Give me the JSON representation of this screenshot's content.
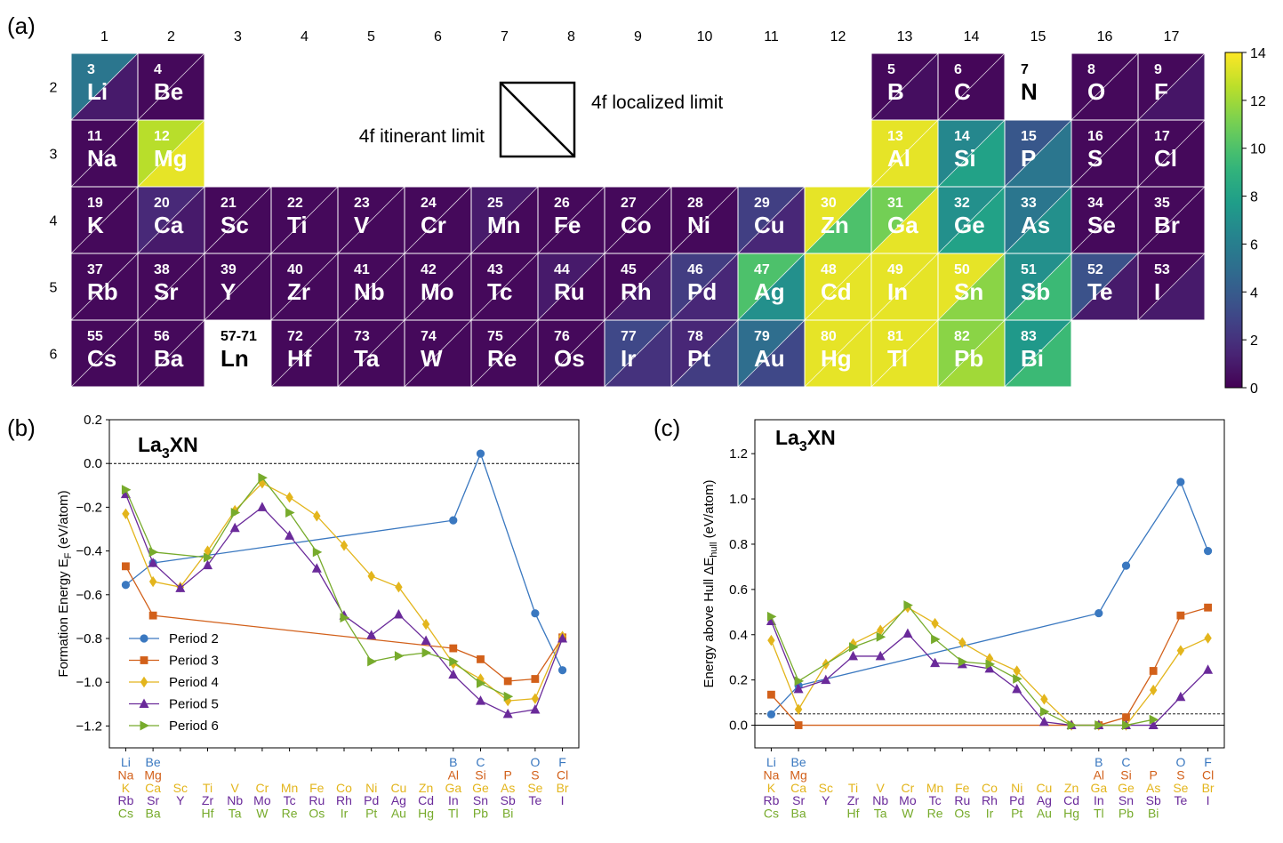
{
  "panel_labels": {
    "a": "(a)",
    "b": "(b)",
    "c": "(c)"
  },
  "colors": {
    "p2": "#3a78c0",
    "p3": "#d2601a",
    "p4": "#e3b51c",
    "p5": "#6a2a9a",
    "p6": "#77ab2c",
    "white_tile": "#ffffff",
    "grid": "#ffffff"
  },
  "periodic_table": {
    "groups": [
      "1",
      "2",
      "3",
      "4",
      "5",
      "6",
      "7",
      "8",
      "9",
      "10",
      "11",
      "12",
      "13",
      "14",
      "15",
      "16",
      "17"
    ],
    "periods": [
      "2",
      "3",
      "4",
      "5",
      "6"
    ],
    "legend": {
      "left": "4f itinerant limit",
      "right": "4f localized limit"
    },
    "colorbar": {
      "min": 0,
      "max": 14,
      "ticks": [
        "0",
        "2",
        "4",
        "6",
        "8",
        "10",
        "12",
        "14"
      ]
    },
    "elements": [
      {
        "num": "3",
        "sym": "Li",
        "period": 2,
        "group": 1,
        "tl": 5.5,
        "br": 1.0
      },
      {
        "num": "4",
        "sym": "Be",
        "period": 2,
        "group": 2,
        "tl": 0.3,
        "br": 0.3
      },
      {
        "num": "5",
        "sym": "B",
        "period": 2,
        "group": 13,
        "tl": 0.3,
        "br": 0.5
      },
      {
        "num": "6",
        "sym": "C",
        "period": 2,
        "group": 14,
        "tl": 0.2,
        "br": 0.3
      },
      {
        "num": "7",
        "sym": "N",
        "period": 2,
        "group": 15,
        "tl": null,
        "br": null
      },
      {
        "num": "8",
        "sym": "O",
        "period": 2,
        "group": 16,
        "tl": 0.3,
        "br": 0.3
      },
      {
        "num": "9",
        "sym": "F",
        "period": 2,
        "group": 17,
        "tl": 0.3,
        "br": 0.8
      },
      {
        "num": "11",
        "sym": "Na",
        "period": 3,
        "group": 1,
        "tl": 0.3,
        "br": 0.3
      },
      {
        "num": "12",
        "sym": "Mg",
        "period": 3,
        "group": 2,
        "tl": 12.5,
        "br": 13.5
      },
      {
        "num": "13",
        "sym": "Al",
        "period": 3,
        "group": 13,
        "tl": 13.5,
        "br": 13.5
      },
      {
        "num": "14",
        "sym": "Si",
        "period": 3,
        "group": 14,
        "tl": 6.5,
        "br": 8.0
      },
      {
        "num": "15",
        "sym": "P",
        "period": 3,
        "group": 15,
        "tl": 3.8,
        "br": 5.5
      },
      {
        "num": "16",
        "sym": "S",
        "period": 3,
        "group": 16,
        "tl": 0.3,
        "br": 0.3
      },
      {
        "num": "17",
        "sym": "Cl",
        "period": 3,
        "group": 17,
        "tl": 0.3,
        "br": 0.3
      },
      {
        "num": "19",
        "sym": "K",
        "period": 4,
        "group": 1,
        "tl": 0.3,
        "br": 0.3
      },
      {
        "num": "20",
        "sym": "Ca",
        "period": 4,
        "group": 2,
        "tl": 1.6,
        "br": 1.0
      },
      {
        "num": "21",
        "sym": "Sc",
        "period": 4,
        "group": 3,
        "tl": 0.3,
        "br": 0.3
      },
      {
        "num": "22",
        "sym": "Ti",
        "period": 4,
        "group": 4,
        "tl": 0.3,
        "br": 0.3
      },
      {
        "num": "23",
        "sym": "V",
        "period": 4,
        "group": 5,
        "tl": 0.3,
        "br": 0.3
      },
      {
        "num": "24",
        "sym": "Cr",
        "period": 4,
        "group": 6,
        "tl": 0.3,
        "br": 0.3
      },
      {
        "num": "25",
        "sym": "Mn",
        "period": 4,
        "group": 7,
        "tl": 1.0,
        "br": 0.3
      },
      {
        "num": "26",
        "sym": "Fe",
        "period": 4,
        "group": 8,
        "tl": 0.3,
        "br": 0.3
      },
      {
        "num": "27",
        "sym": "Co",
        "period": 4,
        "group": 9,
        "tl": 0.3,
        "br": 0.3
      },
      {
        "num": "28",
        "sym": "Ni",
        "period": 4,
        "group": 10,
        "tl": 0.3,
        "br": 0.3
      },
      {
        "num": "29",
        "sym": "Cu",
        "period": 4,
        "group": 11,
        "tl": 2.6,
        "br": 1.5
      },
      {
        "num": "30",
        "sym": "Zn",
        "period": 4,
        "group": 12,
        "tl": 13.5,
        "br": 10.0
      },
      {
        "num": "31",
        "sym": "Ga",
        "period": 4,
        "group": 13,
        "tl": 11.0,
        "br": 13.5
      },
      {
        "num": "32",
        "sym": "Ge",
        "period": 4,
        "group": 14,
        "tl": 7.0,
        "br": 8.0
      },
      {
        "num": "33",
        "sym": "As",
        "period": 4,
        "group": 15,
        "tl": 5.5,
        "br": 7.0
      },
      {
        "num": "34",
        "sym": "Se",
        "period": 4,
        "group": 16,
        "tl": 0.3,
        "br": 0.3
      },
      {
        "num": "35",
        "sym": "Br",
        "period": 4,
        "group": 17,
        "tl": 0.3,
        "br": 0.3
      },
      {
        "num": "37",
        "sym": "Rb",
        "period": 5,
        "group": 1,
        "tl": 0.3,
        "br": 0.3
      },
      {
        "num": "38",
        "sym": "Sr",
        "period": 5,
        "group": 2,
        "tl": 0.3,
        "br": 0.3
      },
      {
        "num": "39",
        "sym": "Y",
        "period": 5,
        "group": 3,
        "tl": 0.3,
        "br": 0.3
      },
      {
        "num": "40",
        "sym": "Zr",
        "period": 5,
        "group": 4,
        "tl": 0.3,
        "br": 0.3
      },
      {
        "num": "41",
        "sym": "Nb",
        "period": 5,
        "group": 5,
        "tl": 0.3,
        "br": 0.3
      },
      {
        "num": "42",
        "sym": "Mo",
        "period": 5,
        "group": 6,
        "tl": 0.3,
        "br": 0.3
      },
      {
        "num": "43",
        "sym": "Tc",
        "period": 5,
        "group": 7,
        "tl": 0.3,
        "br": 0.3
      },
      {
        "num": "44",
        "sym": "Ru",
        "period": 5,
        "group": 8,
        "tl": 1.0,
        "br": 0.3
      },
      {
        "num": "45",
        "sym": "Rh",
        "period": 5,
        "group": 9,
        "tl": 0.3,
        "br": 1.0
      },
      {
        "num": "46",
        "sym": "Pd",
        "period": 5,
        "group": 10,
        "tl": 2.5,
        "br": 1.5
      },
      {
        "num": "47",
        "sym": "Ag",
        "period": 5,
        "group": 11,
        "tl": 10.0,
        "br": 7.0
      },
      {
        "num": "48",
        "sym": "Cd",
        "period": 5,
        "group": 12,
        "tl": 13.5,
        "br": 13.5
      },
      {
        "num": "49",
        "sym": "In",
        "period": 5,
        "group": 13,
        "tl": 13.5,
        "br": 13.5
      },
      {
        "num": "50",
        "sym": "Sn",
        "period": 5,
        "group": 14,
        "tl": 13.5,
        "br": 11.5
      },
      {
        "num": "51",
        "sym": "Sb",
        "period": 5,
        "group": 15,
        "tl": 7.0,
        "br": 9.5
      },
      {
        "num": "52",
        "sym": "Te",
        "period": 5,
        "group": 16,
        "tl": 3.5,
        "br": 1.0
      },
      {
        "num": "53",
        "sym": "I",
        "period": 5,
        "group": 17,
        "tl": 0.3,
        "br": 1.0
      },
      {
        "num": "55",
        "sym": "Cs",
        "period": 6,
        "group": 1,
        "tl": 0.3,
        "br": 0.3
      },
      {
        "num": "56",
        "sym": "Ba",
        "period": 6,
        "group": 2,
        "tl": 0.3,
        "br": 0.3
      },
      {
        "num": "57-71",
        "sym": "Ln",
        "period": 6,
        "group": 3,
        "tl": null,
        "br": null
      },
      {
        "num": "72",
        "sym": "Hf",
        "period": 6,
        "group": 4,
        "tl": 0.3,
        "br": 0.3
      },
      {
        "num": "73",
        "sym": "Ta",
        "period": 6,
        "group": 5,
        "tl": 0.3,
        "br": 0.3
      },
      {
        "num": "74",
        "sym": "W",
        "period": 6,
        "group": 6,
        "tl": 0.3,
        "br": 0.3
      },
      {
        "num": "75",
        "sym": "Re",
        "period": 6,
        "group": 7,
        "tl": 0.3,
        "br": 0.3
      },
      {
        "num": "76",
        "sym": "Os",
        "period": 6,
        "group": 8,
        "tl": 0.3,
        "br": 0.3
      },
      {
        "num": "77",
        "sym": "Ir",
        "period": 6,
        "group": 9,
        "tl": 3.0,
        "br": 2.0
      },
      {
        "num": "78",
        "sym": "Pt",
        "period": 6,
        "group": 10,
        "tl": 1.5,
        "br": 2.5
      },
      {
        "num": "79",
        "sym": "Au",
        "period": 6,
        "group": 11,
        "tl": 5.0,
        "br": 3.0
      },
      {
        "num": "80",
        "sym": "Hg",
        "period": 6,
        "group": 12,
        "tl": 13.5,
        "br": 13.5
      },
      {
        "num": "81",
        "sym": "Tl",
        "period": 6,
        "group": 13,
        "tl": 13.5,
        "br": 13.5
      },
      {
        "num": "82",
        "sym": "Pb",
        "period": 6,
        "group": 14,
        "tl": 11.5,
        "br": 12.0
      },
      {
        "num": "83",
        "sym": "Bi",
        "period": 6,
        "group": 15,
        "tl": 7.5,
        "br": 9.5
      }
    ]
  },
  "x_labels": [
    {
      "pos": 0,
      "rows": [
        "Li",
        "Na",
        "K",
        "Rb",
        "Cs"
      ]
    },
    {
      "pos": 1,
      "rows": [
        "Be",
        "Mg",
        "Ca",
        "Sr",
        "Ba"
      ]
    },
    {
      "pos": 2,
      "rows": [
        "",
        "",
        "Sc",
        "Y",
        ""
      ]
    },
    {
      "pos": 3,
      "rows": [
        "",
        "",
        "Ti",
        "Zr",
        "Hf"
      ]
    },
    {
      "pos": 4,
      "rows": [
        "",
        "",
        "V",
        "Nb",
        "Ta"
      ]
    },
    {
      "pos": 5,
      "rows": [
        "",
        "",
        "Cr",
        "Mo",
        "W"
      ]
    },
    {
      "pos": 6,
      "rows": [
        "",
        "",
        "Mn",
        "Tc",
        "Re"
      ]
    },
    {
      "pos": 7,
      "rows": [
        "",
        "",
        "Fe",
        "Ru",
        "Os"
      ]
    },
    {
      "pos": 8,
      "rows": [
        "",
        "",
        "Co",
        "Rh",
        "Ir"
      ]
    },
    {
      "pos": 9,
      "rows": [
        "",
        "",
        "Ni",
        "Pd",
        "Pt"
      ]
    },
    {
      "pos": 10,
      "rows": [
        "",
        "",
        "Cu",
        "Ag",
        "Au"
      ]
    },
    {
      "pos": 11,
      "rows": [
        "",
        "",
        "Zn",
        "Cd",
        "Hg"
      ]
    },
    {
      "pos": 12,
      "rows": [
        "B",
        "Al",
        "Ga",
        "In",
        "Tl"
      ]
    },
    {
      "pos": 13,
      "rows": [
        "C",
        "Si",
        "Ge",
        "Sn",
        "Pb"
      ]
    },
    {
      "pos": 14,
      "rows": [
        "",
        "P",
        "As",
        "Sb",
        "Bi"
      ]
    },
    {
      "pos": 15,
      "rows": [
        "O",
        "S",
        "Se",
        "Te",
        ""
      ]
    },
    {
      "pos": 16,
      "rows": [
        "F",
        "Cl",
        "Br",
        "I",
        ""
      ]
    }
  ],
  "chart_data": [
    {
      "type": "line",
      "title": "La3XN",
      "title_parts": {
        "a": "La",
        "b": "3",
        "c": "XN"
      },
      "ylabel": "Formation Energy E_F (eV/atom)",
      "ylabel_parts": {
        "a": "Formation Energy E",
        "b": "F",
        "c": " (eV/atom)"
      },
      "xlim": [
        -0.6,
        16.6
      ],
      "ylim": [
        -1.3,
        0.2
      ],
      "yticks": [
        "0.2",
        "0.0",
        "−0.2",
        "−0.4",
        "−0.6",
        "−0.8",
        "−1.0",
        "−1.2"
      ],
      "ytick_values": [
        0.2,
        0.0,
        -0.2,
        -0.4,
        -0.6,
        -0.8,
        -1.0,
        -1.2
      ],
      "hline": {
        "y": 0.0,
        "style": "dashed"
      },
      "legend": [
        "Period 2",
        "Period 3",
        "Period 4",
        "Period 5",
        "Period 6"
      ],
      "series": [
        {
          "name": "Period 2",
          "marker": "circle",
          "x": [
            0,
            1,
            12,
            13,
            15,
            16
          ],
          "y": [
            -0.555,
            -0.455,
            -0.26,
            0.045,
            -0.685,
            -0.945
          ]
        },
        {
          "name": "Period 3",
          "marker": "square",
          "x": [
            0,
            1,
            12,
            13,
            14,
            15,
            16
          ],
          "y": [
            -0.47,
            -0.695,
            -0.845,
            -0.895,
            -0.995,
            -0.985,
            -0.795
          ]
        },
        {
          "name": "Period 4",
          "marker": "diamond",
          "x": [
            0,
            1,
            2,
            3,
            4,
            5,
            6,
            7,
            8,
            9,
            10,
            11,
            12,
            13,
            14,
            15,
            16
          ],
          "y": [
            -0.23,
            -0.54,
            -0.565,
            -0.4,
            -0.215,
            -0.09,
            -0.155,
            -0.24,
            -0.375,
            -0.515,
            -0.565,
            -0.735,
            -0.915,
            -0.985,
            -1.085,
            -1.075,
            -0.79
          ]
        },
        {
          "name": "Period 5",
          "marker": "triangle-up",
          "x": [
            0,
            1,
            2,
            3,
            4,
            5,
            6,
            7,
            8,
            9,
            10,
            11,
            12,
            13,
            14,
            15,
            16
          ],
          "y": [
            -0.14,
            -0.455,
            -0.57,
            -0.465,
            -0.295,
            -0.2,
            -0.33,
            -0.48,
            -0.695,
            -0.785,
            -0.69,
            -0.81,
            -0.965,
            -1.085,
            -1.145,
            -1.125,
            -0.8
          ]
        },
        {
          "name": "Period 6",
          "marker": "triangle-right",
          "x": [
            0,
            1,
            3,
            4,
            5,
            6,
            7,
            8,
            9,
            10,
            11,
            12,
            13,
            14
          ],
          "y": [
            -0.12,
            -0.405,
            -0.43,
            -0.225,
            -0.065,
            -0.225,
            -0.405,
            -0.705,
            -0.905,
            -0.88,
            -0.865,
            -0.905,
            -1.005,
            -1.065
          ]
        }
      ]
    },
    {
      "type": "line",
      "title": "La3XN",
      "title_parts": {
        "a": "La",
        "b": "3",
        "c": "XN"
      },
      "ylabel": "Energy above Hull ΔE_hull (eV/atom)",
      "ylabel_parts": {
        "a": "Energy above Hull ΔE",
        "b": "hull",
        "c": " (eV/atom)"
      },
      "xlim": [
        -0.6,
        16.6
      ],
      "ylim": [
        -0.1,
        1.35
      ],
      "yticks": [
        "0.0",
        "0.2",
        "0.4",
        "0.6",
        "0.8",
        "1.0",
        "1.2"
      ],
      "ytick_values": [
        0.0,
        0.2,
        0.4,
        0.6,
        0.8,
        1.0,
        1.2
      ],
      "hline": {
        "y": 0.0,
        "style": "solid"
      },
      "hline2": {
        "y": 0.05,
        "style": "dashed"
      },
      "series": [
        {
          "name": "Period 2",
          "marker": "circle",
          "x": [
            0,
            1,
            12,
            13,
            15,
            16
          ],
          "y": [
            0.048,
            0.175,
            0.495,
            0.705,
            1.075,
            0.77
          ]
        },
        {
          "name": "Period 3",
          "marker": "square",
          "x": [
            0,
            1,
            12,
            13,
            14,
            15,
            16
          ],
          "y": [
            0.135,
            0.0,
            0.0,
            0.035,
            0.24,
            0.485,
            0.52
          ]
        },
        {
          "name": "Period 4",
          "marker": "diamond",
          "x": [
            0,
            1,
            2,
            3,
            4,
            5,
            6,
            7,
            8,
            9,
            10,
            11,
            12,
            13,
            14,
            15,
            16
          ],
          "y": [
            0.375,
            0.07,
            0.27,
            0.36,
            0.42,
            0.52,
            0.45,
            0.365,
            0.295,
            0.24,
            0.115,
            0.0,
            0.0,
            0.0,
            0.155,
            0.33,
            0.385
          ]
        },
        {
          "name": "Period 5",
          "marker": "triangle-up",
          "x": [
            0,
            1,
            2,
            3,
            4,
            5,
            6,
            7,
            8,
            9,
            10,
            11,
            12,
            13,
            14,
            15,
            16
          ],
          "y": [
            0.46,
            0.16,
            0.2,
            0.305,
            0.305,
            0.405,
            0.275,
            0.27,
            0.25,
            0.16,
            0.015,
            0.0,
            0.0,
            0.0,
            0.0,
            0.125,
            0.245
          ]
        },
        {
          "name": "Period 6",
          "marker": "triangle-right",
          "x": [
            0,
            1,
            3,
            4,
            5,
            6,
            7,
            8,
            9,
            10,
            11,
            12,
            13,
            14
          ],
          "y": [
            0.48,
            0.195,
            0.345,
            0.39,
            0.53,
            0.38,
            0.28,
            0.27,
            0.205,
            0.06,
            0.0,
            0.0,
            0.0,
            0.025
          ]
        }
      ]
    }
  ]
}
